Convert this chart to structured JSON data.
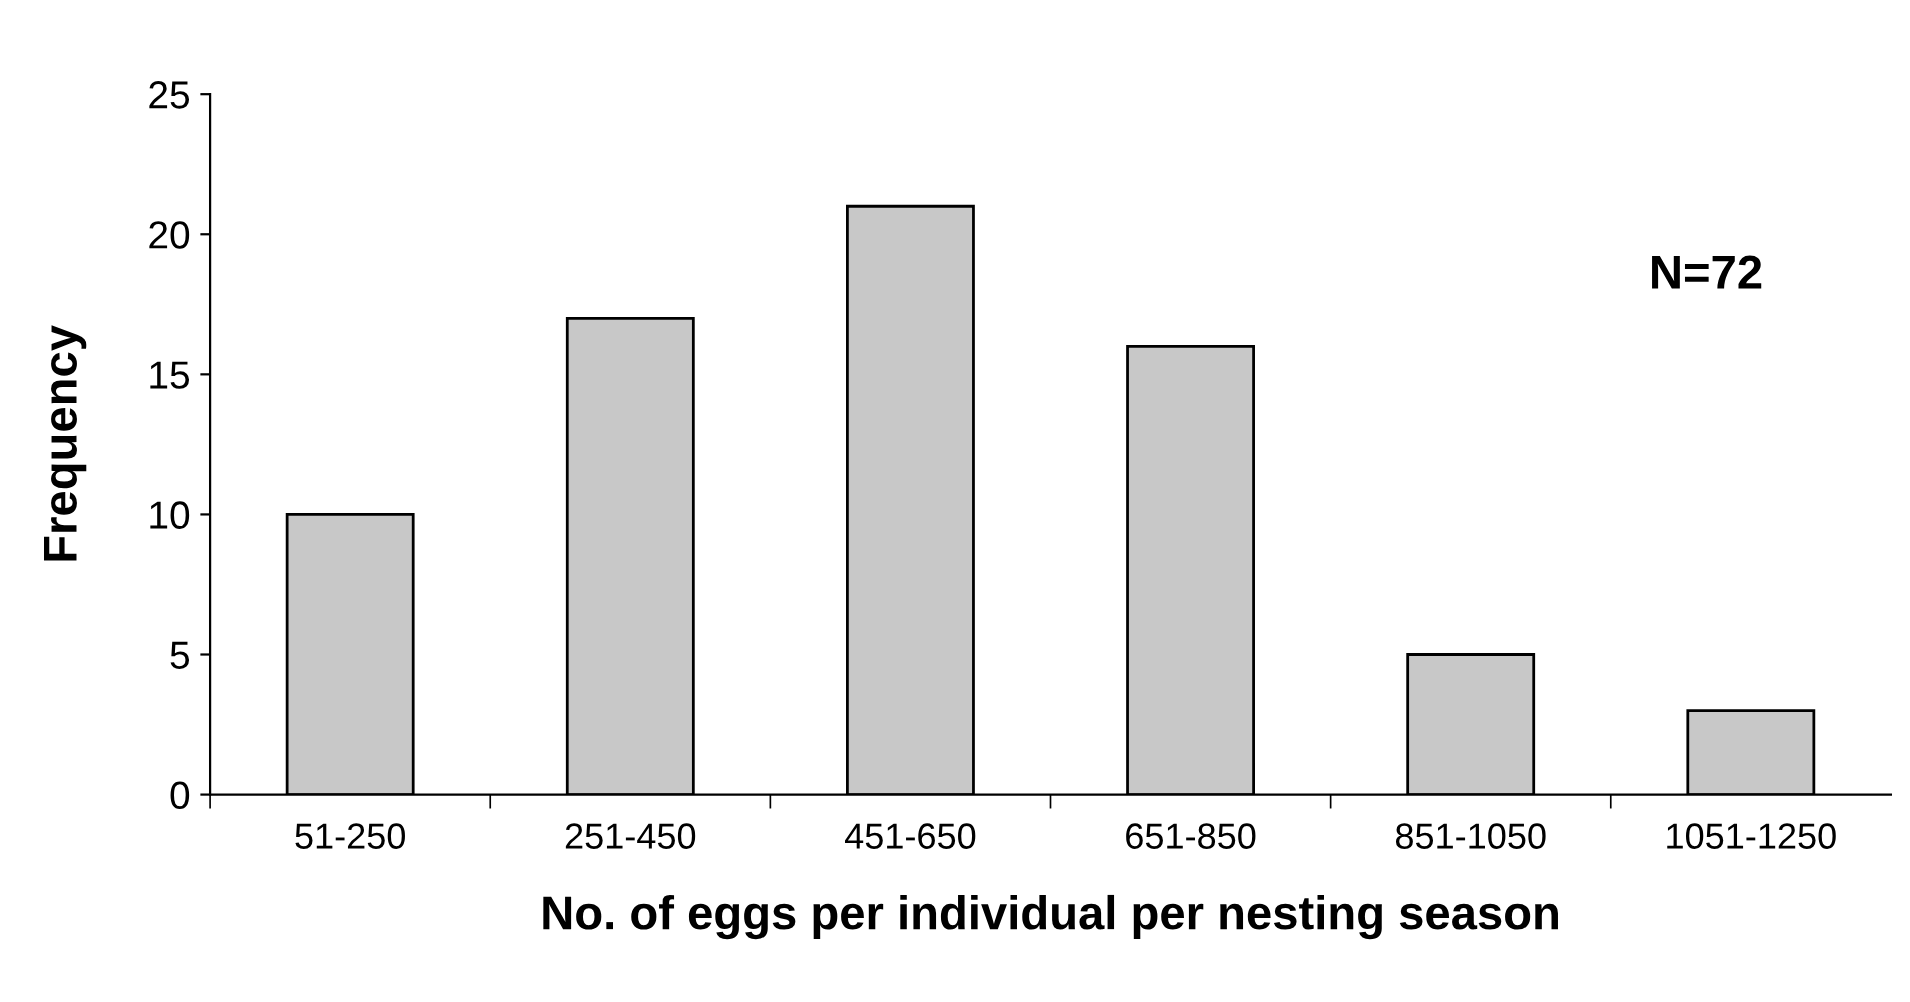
{
  "chart_data": {
    "type": "bar",
    "xlabel": "No. of eggs per individual per nesting season",
    "ylabel": "Frequency",
    "categories": [
      "51-250",
      "251-450",
      "451-650",
      "651-850",
      "851-1050",
      "1051-1250"
    ],
    "values": [
      10,
      17,
      21,
      16,
      5,
      3
    ],
    "color": "#c8c8c8",
    "ylim": [
      0,
      25
    ],
    "yticks": [
      0,
      5,
      10,
      15,
      20,
      25
    ],
    "grid": false,
    "annotations": [
      "N=72"
    ]
  }
}
